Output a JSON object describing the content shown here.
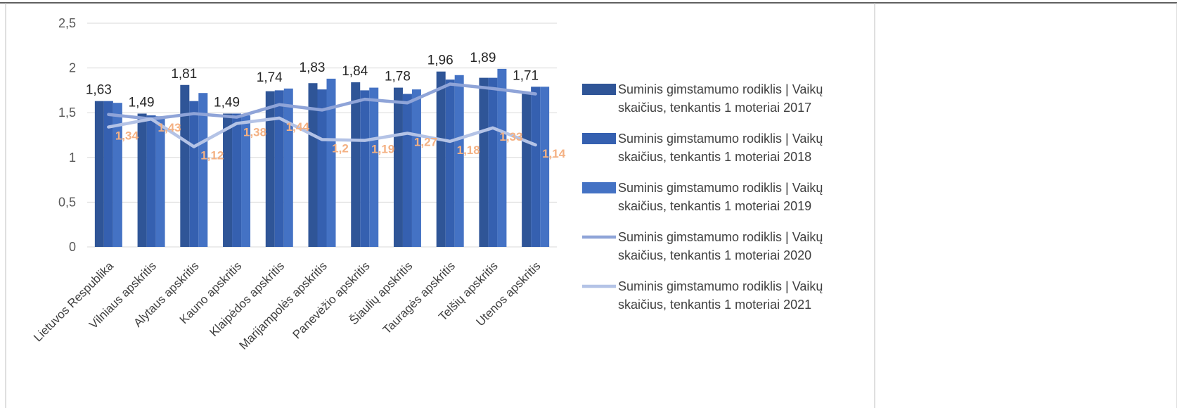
{
  "chart_data": {
    "type": "bar",
    "title": "",
    "xlabel": "",
    "ylabel": "",
    "ylim": [
      0,
      2.5
    ],
    "yticks": [
      "0",
      "0,5",
      "1",
      "1,5",
      "2",
      "2,5"
    ],
    "grid": true,
    "legend_position": "right",
    "categories": [
      "Lietuvos Respublika",
      "Vilniaus apskritis",
      "Alytaus apskritis",
      "Kauno apskritis",
      "Klaipėdos apskritis",
      "Marijampolės apskritis",
      "Panevėžio apskritis",
      "Šiaulių apskritis",
      "Tauragės apskritis",
      "Telšių apskritis",
      "Utenos apskritis"
    ],
    "series": [
      {
        "name": "Suminis gimstamumo rodiklis | Vaikų skaičius, tenkantis 1 moteriai 2017",
        "type": "bar",
        "color": "#2F5597",
        "values": [
          1.63,
          1.49,
          1.81,
          1.49,
          1.74,
          1.83,
          1.84,
          1.78,
          1.96,
          1.89,
          1.71
        ],
        "labels": [
          "1,63",
          "1,49",
          "1,81",
          "1,49",
          "1,74",
          "1,83",
          "1,84",
          "1,78",
          "1,96",
          "1,89",
          "1,71"
        ]
      },
      {
        "name": "Suminis gimstamumo rodiklis | Vaikų skaičius, tenkantis 1 moteriai 2018",
        "type": "bar",
        "color": "#3560B0",
        "values": [
          1.63,
          1.47,
          1.63,
          1.49,
          1.75,
          1.76,
          1.75,
          1.71,
          1.87,
          1.89,
          1.79
        ]
      },
      {
        "name": "Suminis gimstamumo rodiklis | Vaikų skaičius, tenkantis 1 moteriai 2019",
        "type": "bar",
        "color": "#4472C4",
        "values": [
          1.61,
          1.46,
          1.72,
          1.47,
          1.77,
          1.88,
          1.78,
          1.76,
          1.92,
          1.99,
          1.79
        ]
      },
      {
        "name": "Suminis gimstamumo rodiklis | Vaikų skaičius, tenkantis 1 moteriai 2020",
        "type": "line",
        "color": "#8FA4D8",
        "values": [
          1.48,
          1.43,
          1.49,
          1.45,
          1.59,
          1.53,
          1.65,
          1.61,
          1.82,
          1.77,
          1.71
        ]
      },
      {
        "name": "Suminis gimstamumo rodiklis | Vaikų skaičius, tenkantis 1 moteriai 2021",
        "type": "line",
        "color": "#B4C3E6",
        "values": [
          1.34,
          1.43,
          1.12,
          1.38,
          1.44,
          1.2,
          1.19,
          1.27,
          1.18,
          1.33,
          1.14
        ],
        "labels": [
          "1,34",
          "1,43",
          "1,12",
          "1,38",
          "1,44",
          "1,2",
          "1,19",
          "1,27",
          "1,18",
          "1,33",
          "1,14"
        ]
      }
    ]
  }
}
